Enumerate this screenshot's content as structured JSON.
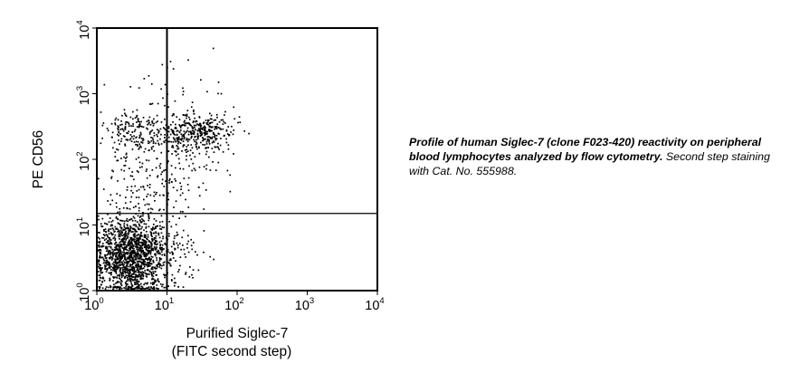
{
  "chart_data": {
    "type": "scatter",
    "title": "",
    "xlabel": [
      "Purified Siglec-7",
      "(FITC second step)"
    ],
    "ylabel": "PE CD56",
    "x_scale": "log",
    "y_scale": "log",
    "xlim": [
      1,
      10000
    ],
    "ylim": [
      1,
      10000
    ],
    "x_ticks": [
      {
        "value": 1,
        "base": "10",
        "exp": "0"
      },
      {
        "value": 10,
        "base": "10",
        "exp": "1"
      },
      {
        "value": 100,
        "base": "10",
        "exp": "2"
      },
      {
        "value": 1000,
        "base": "10",
        "exp": "3"
      },
      {
        "value": 10000,
        "base": "10",
        "exp": "4"
      }
    ],
    "y_ticks": [
      {
        "value": 1,
        "base": "10",
        "exp": "0"
      },
      {
        "value": 10,
        "base": "10",
        "exp": "1"
      },
      {
        "value": 100,
        "base": "10",
        "exp": "2"
      },
      {
        "value": 1000,
        "base": "10",
        "exp": "3"
      },
      {
        "value": 10000,
        "base": "10",
        "exp": "4"
      }
    ],
    "quadrant_gates": {
      "x": 10,
      "y": 15
    },
    "populations": [
      {
        "center": [
          3.2,
          3.5
        ],
        "spread": [
          0.26,
          0.3
        ],
        "count": 1500
      },
      {
        "center": [
          25,
          250
        ],
        "spread": [
          0.3,
          0.17
        ],
        "count": 420
      },
      {
        "center": [
          3.5,
          250
        ],
        "spread": [
          0.2,
          0.17
        ],
        "count": 170
      },
      {
        "center": [
          12,
          50
        ],
        "spread": [
          0.35,
          0.3
        ],
        "count": 110
      },
      {
        "center": [
          4,
          40
        ],
        "spread": [
          0.25,
          0.4
        ],
        "count": 80
      },
      {
        "center": [
          18,
          4
        ],
        "spread": [
          0.18,
          0.25
        ],
        "count": 50
      },
      {
        "center": [
          8,
          1000
        ],
        "spread": [
          0.4,
          0.25
        ],
        "count": 30
      }
    ],
    "point_color": "#000000",
    "grid": false
  },
  "caption": {
    "bold": "Profile of human Siglec-7 (clone F023-420) reactivity on peripheral blood lymphocytes analyzed by flow cytometry.",
    "normal": " Second step staining with Cat. No. 555988."
  }
}
